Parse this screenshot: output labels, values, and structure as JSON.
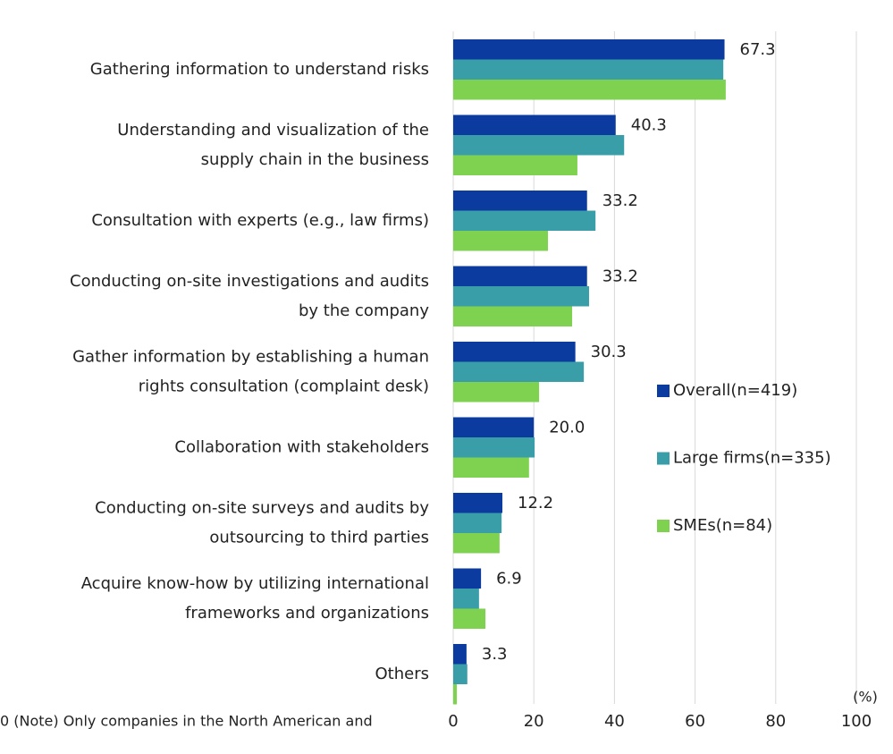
{
  "chart_data": {
    "type": "hbar",
    "categories": [
      [
        "Gathering information to understand risks"
      ],
      [
        "Understanding and visualization of the",
        "supply chain in the business"
      ],
      [
        "Consultation with experts (e.g., law firms)"
      ],
      [
        "Conducting on-site investigations and audits",
        "by the company"
      ],
      [
        "Gather information by establishing a human",
        "rights consultation (complaint desk)"
      ],
      [
        "Collaboration with stakeholders"
      ],
      [
        "Conducting on-site surveys and audits by",
        "outsourcing to third parties"
      ],
      [
        "Acquire know-how by utilizing international",
        "frameworks and organizations"
      ],
      [
        "Others"
      ]
    ],
    "series": [
      {
        "name": "Overall(n=419)",
        "color": "#0b3b9e",
        "values": [
          67.3,
          40.3,
          33.2,
          33.2,
          30.3,
          20.0,
          12.2,
          6.9,
          3.3
        ],
        "value_labels": [
          "67.3",
          "40.3",
          "33.2",
          "33.2",
          "30.3",
          "20.0",
          "12.2",
          "6.9",
          "3.3"
        ]
      },
      {
        "name": "Large firms(n=335)",
        "color": "#3a9ea9",
        "values": [
          67.0,
          42.4,
          35.3,
          33.7,
          32.4,
          20.2,
          12.0,
          6.4,
          3.5
        ]
      },
      {
        "name": "SMEs(n=84)",
        "color": "#7fd150",
        "values": [
          67.6,
          30.8,
          23.5,
          29.5,
          21.3,
          18.8,
          11.5,
          8.0,
          0.9
        ]
      }
    ],
    "xlim": [
      0,
      100
    ],
    "xticks": [
      0,
      20,
      40,
      60,
      80,
      100
    ],
    "x_unit": "(%)",
    "note": "0 (Note) Only companies in the North American and",
    "grid": true,
    "legend": "right"
  }
}
